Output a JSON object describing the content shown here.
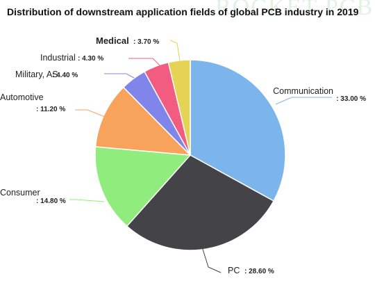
{
  "watermark": "ROCKET PCB",
  "chart_data": {
    "type": "pie",
    "title": "Distribution of downstream application fields of global PCB industry in 2019",
    "slices": [
      {
        "name": "Communication",
        "value": 33.0,
        "label": "33.00 %",
        "color": "#7cb5ec"
      },
      {
        "name": "PC",
        "value": 28.6,
        "label": "28.60 %",
        "color": "#434348"
      },
      {
        "name": "Consumer",
        "value": 14.8,
        "label": "14.80 %",
        "color": "#90ed7d"
      },
      {
        "name": "Automotive",
        "value": 11.2,
        "label": "11.20 %",
        "color": "#f7a35c"
      },
      {
        "name": "Military, AS",
        "value": 4.4,
        "label": "4.40 %",
        "color": "#8085e9"
      },
      {
        "name": "Industrial",
        "value": 4.3,
        "label": "4.30 %",
        "color": "#f15c80"
      },
      {
        "name": "Medical",
        "value": 3.7,
        "label": "3.70 %",
        "color": "#e4d354"
      }
    ]
  }
}
